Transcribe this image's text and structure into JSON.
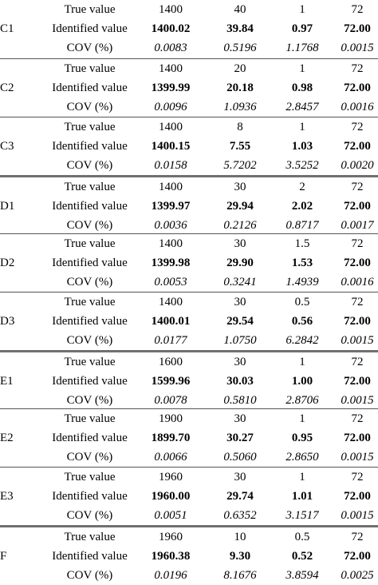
{
  "row_labels": {
    "true": "True value",
    "identified": "Identified value",
    "cov": "COV (%)"
  },
  "groups": [
    {
      "name": "C1",
      "true": [
        "1400",
        "40",
        "1",
        "72"
      ],
      "identified": [
        "1400.02",
        "39.84",
        "0.97",
        "72.00"
      ],
      "cov": [
        "0.0083",
        "0.5196",
        "1.1768",
        "0.0015"
      ]
    },
    {
      "name": "C2",
      "true": [
        "1400",
        "20",
        "1",
        "72"
      ],
      "identified": [
        "1399.99",
        "20.18",
        "0.98",
        "72.00"
      ],
      "cov": [
        "0.0096",
        "1.0936",
        "2.8457",
        "0.0016"
      ]
    },
    {
      "name": "C3",
      "true": [
        "1400",
        "8",
        "1",
        "72"
      ],
      "identified": [
        "1400.15",
        "7.55",
        "1.03",
        "72.00"
      ],
      "cov": [
        "0.0158",
        "5.7202",
        "3.5252",
        "0.0020"
      ]
    },
    {
      "name": "D1",
      "true": [
        "1400",
        "30",
        "2",
        "72"
      ],
      "identified": [
        "1399.97",
        "29.94",
        "2.02",
        "72.00"
      ],
      "cov": [
        "0.0036",
        "0.2126",
        "0.8717",
        "0.0017"
      ]
    },
    {
      "name": "D2",
      "true": [
        "1400",
        "30",
        "1.5",
        "72"
      ],
      "identified": [
        "1399.98",
        "29.90",
        "1.53",
        "72.00"
      ],
      "cov": [
        "0.0053",
        "0.3241",
        "1.4939",
        "0.0016"
      ]
    },
    {
      "name": "D3",
      "true": [
        "1400",
        "30",
        "0.5",
        "72"
      ],
      "identified": [
        "1400.01",
        "29.54",
        "0.56",
        "72.00"
      ],
      "cov": [
        "0.0177",
        "1.0750",
        "6.2842",
        "0.0015"
      ]
    },
    {
      "name": "E1",
      "true": [
        "1600",
        "30",
        "1",
        "72"
      ],
      "identified": [
        "1599.96",
        "30.03",
        "1.00",
        "72.00"
      ],
      "cov": [
        "0.0078",
        "0.5810",
        "2.8706",
        "0.0015"
      ]
    },
    {
      "name": "E2",
      "true": [
        "1900",
        "30",
        "1",
        "72"
      ],
      "identified": [
        "1899.70",
        "30.27",
        "0.95",
        "72.00"
      ],
      "cov": [
        "0.0066",
        "0.5060",
        "2.8650",
        "0.0015"
      ]
    },
    {
      "name": "E3",
      "true": [
        "1960",
        "30",
        "1",
        "72"
      ],
      "identified": [
        "1960.00",
        "29.74",
        "1.01",
        "72.00"
      ],
      "cov": [
        "0.0051",
        "0.6352",
        "3.1517",
        "0.0015"
      ]
    },
    {
      "name": "F",
      "true": [
        "1960",
        "10",
        "0.5",
        "72"
      ],
      "identified": [
        "1960.38",
        "9.30",
        "0.52",
        "72.00"
      ],
      "cov": [
        "0.0196",
        "8.1676",
        "3.8594",
        "0.0025"
      ]
    }
  ]
}
